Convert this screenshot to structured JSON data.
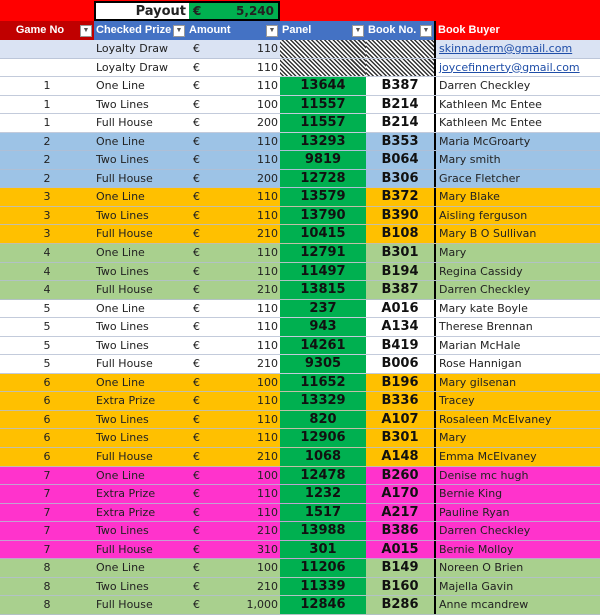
{
  "payout": {
    "label": "Payout",
    "currency": "€",
    "value": "5,240"
  },
  "headers": [
    "Game No",
    "Checked Prize",
    "Amount",
    "Panel",
    "Book No.",
    "Book Buyer"
  ],
  "colors": {
    "red": "#ff0000",
    "dark_red": "#c00000",
    "header_blue": "#4472c4",
    "panel_green": "#00b050",
    "loyalty": "#dae3f3",
    "white": "#ffffff",
    "blue": "#9dc3e6",
    "orange": "#ffc000",
    "green": "#a9d08e",
    "magenta": "#ff33cc"
  },
  "rows": [
    {
      "game": "",
      "prize": "Loyalty Draw",
      "cur": "€",
      "amount": "110",
      "panel": "",
      "book": "",
      "buyer": "skinnaderm@gmail.com",
      "color": "loyalty",
      "link": true
    },
    {
      "game": "",
      "prize": "Loyalty Draw",
      "cur": "€",
      "amount": "110",
      "panel": "",
      "book": "",
      "buyer": "joycefinnerty@gmail.com",
      "color": "white",
      "link": true
    },
    {
      "game": "1",
      "prize": "One Line",
      "cur": "€",
      "amount": "110",
      "panel": "13644",
      "book": "B387",
      "buyer": "Darren Checkley",
      "color": "white"
    },
    {
      "game": "1",
      "prize": "Two Lines",
      "cur": "€",
      "amount": "100",
      "panel": "11557",
      "book": "B214",
      "buyer": "Kathleen Mc Entee",
      "color": "white"
    },
    {
      "game": "1",
      "prize": "Full House",
      "cur": "€",
      "amount": "200",
      "panel": "11557",
      "book": "B214",
      "buyer": "Kathleen Mc Entee",
      "color": "white"
    },
    {
      "game": "2",
      "prize": "One Line",
      "cur": "€",
      "amount": "110",
      "panel": "13293",
      "book": "B353",
      "buyer": "Maria McGroarty",
      "color": "blue"
    },
    {
      "game": "2",
      "prize": "Two Lines",
      "cur": "€",
      "amount": "110",
      "panel": "9819",
      "book": "B064",
      "buyer": "Mary smith",
      "color": "blue"
    },
    {
      "game": "2",
      "prize": "Full House",
      "cur": "€",
      "amount": "200",
      "panel": "12728",
      "book": "B306",
      "buyer": "Grace Fletcher",
      "color": "blue"
    },
    {
      "game": "3",
      "prize": "One Line",
      "cur": "€",
      "amount": "110",
      "panel": "13579",
      "book": "B372",
      "buyer": "Mary Blake",
      "color": "orange"
    },
    {
      "game": "3",
      "prize": "Two Lines",
      "cur": "€",
      "amount": "110",
      "panel": "13790",
      "book": "B390",
      "buyer": "Aisling ferguson",
      "color": "orange"
    },
    {
      "game": "3",
      "prize": "Full House",
      "cur": "€",
      "amount": "210",
      "panel": "10415",
      "book": "B108",
      "buyer": "Mary B O Sullivan",
      "color": "orange"
    },
    {
      "game": "4",
      "prize": "One Line",
      "cur": "€",
      "amount": "110",
      "panel": "12791",
      "book": "B301",
      "buyer": "Mary",
      "color": "green"
    },
    {
      "game": "4",
      "prize": "Two Lines",
      "cur": "€",
      "amount": "110",
      "panel": "11497",
      "book": "B194",
      "buyer": "Regina Cassidy",
      "color": "green"
    },
    {
      "game": "4",
      "prize": "Full House",
      "cur": "€",
      "amount": "210",
      "panel": "13815",
      "book": "B387",
      "buyer": "Darren Checkley",
      "color": "green"
    },
    {
      "game": "5",
      "prize": "One Line",
      "cur": "€",
      "amount": "110",
      "panel": "237",
      "book": "A016",
      "buyer": "Mary kate Boyle",
      "color": "white"
    },
    {
      "game": "5",
      "prize": "Two Lines",
      "cur": "€",
      "amount": "110",
      "panel": "943",
      "book": "A134",
      "buyer": "Therese Brennan",
      "color": "white"
    },
    {
      "game": "5",
      "prize": "Two Lines",
      "cur": "€",
      "amount": "110",
      "panel": "14261",
      "book": "B419",
      "buyer": "Marian McHale",
      "color": "white"
    },
    {
      "game": "5",
      "prize": "Full House",
      "cur": "€",
      "amount": "210",
      "panel": "9305",
      "book": "B006",
      "buyer": "Rose Hannigan",
      "color": "white"
    },
    {
      "game": "6",
      "prize": "One Line",
      "cur": "€",
      "amount": "100",
      "panel": "11652",
      "book": "B196",
      "buyer": "Mary gilsenan",
      "color": "orange"
    },
    {
      "game": "6",
      "prize": "Extra Prize",
      "cur": "€",
      "amount": "110",
      "panel": "13329",
      "book": "B336",
      "buyer": "Tracey",
      "color": "orange"
    },
    {
      "game": "6",
      "prize": "Two Lines",
      "cur": "€",
      "amount": "110",
      "panel": "820",
      "book": "A107",
      "buyer": "Rosaleen McElvaney",
      "color": "orange"
    },
    {
      "game": "6",
      "prize": "Two Lines",
      "cur": "€",
      "amount": "110",
      "panel": "12906",
      "book": "B301",
      "buyer": "Mary",
      "color": "orange"
    },
    {
      "game": "6",
      "prize": "Full House",
      "cur": "€",
      "amount": "210",
      "panel": "1068",
      "book": "A148",
      "buyer": "Emma McElvaney",
      "color": "orange"
    },
    {
      "game": "7",
      "prize": "One Line",
      "cur": "€",
      "amount": "100",
      "panel": "12478",
      "book": "B260",
      "buyer": "Denise mc hugh",
      "color": "magenta"
    },
    {
      "game": "7",
      "prize": "Extra Prize",
      "cur": "€",
      "amount": "110",
      "panel": "1232",
      "book": "A170",
      "buyer": "Bernie King",
      "color": "magenta"
    },
    {
      "game": "7",
      "prize": "Extra Prize",
      "cur": "€",
      "amount": "110",
      "panel": "1517",
      "book": "A217",
      "buyer": "Pauline Ryan",
      "color": "magenta"
    },
    {
      "game": "7",
      "prize": "Two Lines",
      "cur": "€",
      "amount": "210",
      "panel": "13988",
      "book": "B386",
      "buyer": "Darren Checkley",
      "color": "magenta"
    },
    {
      "game": "7",
      "prize": "Full House",
      "cur": "€",
      "amount": "310",
      "panel": "301",
      "book": "A015",
      "buyer": "Bernie Molloy",
      "color": "magenta"
    },
    {
      "game": "8",
      "prize": "One Line",
      "cur": "€",
      "amount": "100",
      "panel": "11206",
      "book": "B149",
      "buyer": "Noreen O Brien",
      "color": "green"
    },
    {
      "game": "8",
      "prize": "Two Lines",
      "cur": "€",
      "amount": "210",
      "panel": "11339",
      "book": "B160",
      "buyer": "Majella Gavin",
      "color": "green"
    },
    {
      "game": "8",
      "prize": "Full House",
      "cur": "€",
      "amount": "1,000",
      "panel": "12846",
      "book": "B286",
      "buyer": "Anne mcandrew",
      "color": "green"
    }
  ]
}
